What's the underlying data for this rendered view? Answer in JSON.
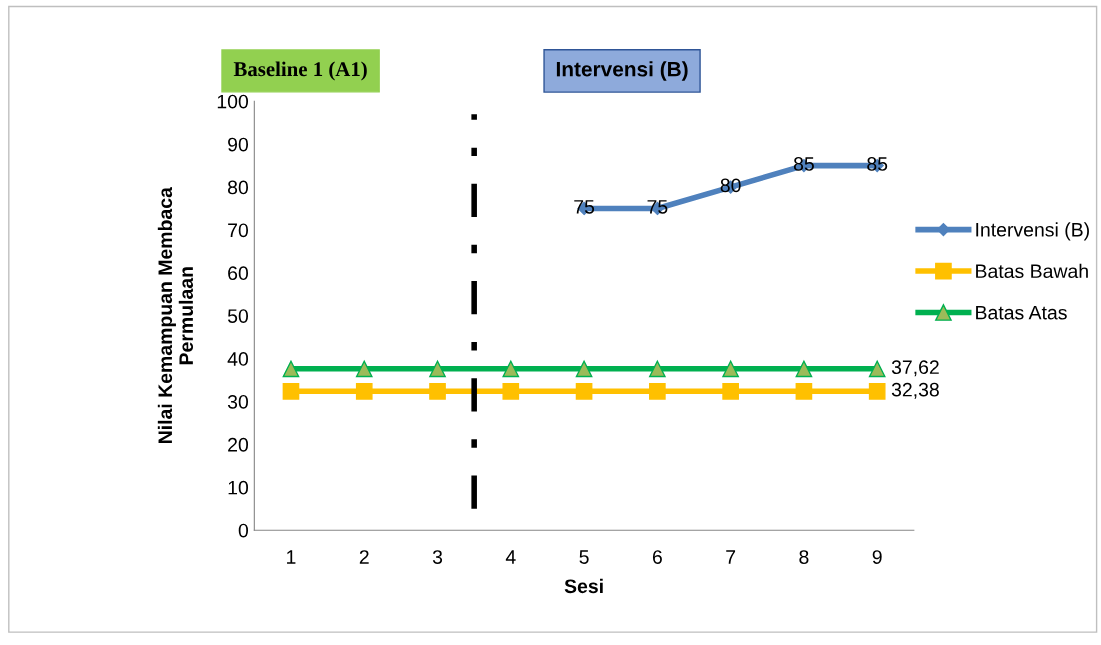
{
  "chart_data": {
    "type": "line",
    "xlabel": "Sesi",
    "ylabel": "Nilai Kemampuan Membaca\nPermulaan",
    "x": [
      1,
      2,
      3,
      4,
      5,
      6,
      7,
      8,
      9
    ],
    "xlim": [
      0.5,
      9.5
    ],
    "xticks": [
      1,
      2,
      3,
      4,
      5,
      6,
      7,
      8,
      9
    ],
    "ylim": [
      0,
      100
    ],
    "yticks": [
      0,
      10,
      20,
      30,
      40,
      50,
      60,
      70,
      80,
      90,
      100
    ],
    "series": [
      {
        "name": "Intervensi (B)",
        "color": "#4f81bd",
        "marker": "diamond",
        "values": [
          null,
          null,
          null,
          null,
          75,
          75,
          80,
          85,
          85
        ],
        "value_labels": [
          null,
          null,
          null,
          null,
          "75",
          "75",
          "80",
          "85",
          "85"
        ]
      },
      {
        "name": "Batas Bawah",
        "color": "#ffc000",
        "marker": "square",
        "values": [
          32.38,
          32.38,
          32.38,
          32.38,
          32.38,
          32.38,
          32.38,
          32.38,
          32.38
        ],
        "value_labels": [
          null,
          null,
          null,
          null,
          null,
          null,
          null,
          null,
          "32,38"
        ]
      },
      {
        "name": "Batas Atas",
        "color": "#00b050",
        "marker": "triangle",
        "values": [
          37.62,
          37.62,
          37.62,
          37.62,
          37.62,
          37.62,
          37.62,
          37.62,
          37.62
        ],
        "value_labels": [
          null,
          null,
          null,
          null,
          null,
          null,
          null,
          null,
          "37,62"
        ]
      }
    ],
    "ref_lines": [
      {
        "axis": "x",
        "value": 3.5,
        "color": "#000000",
        "line_style": "dashed"
      }
    ],
    "annotations": [
      "Baseline 1 (A1)",
      "Intervensi (B)"
    ],
    "legend": "right",
    "grid": false,
    "line_style": "solid"
  }
}
